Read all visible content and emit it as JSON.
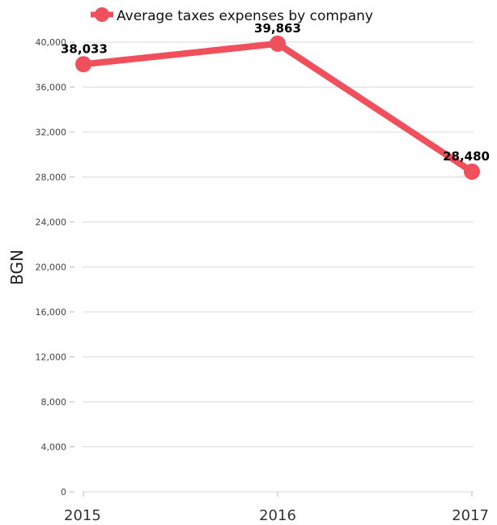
{
  "chart_data": {
    "type": "line",
    "categories": [
      "2015",
      "2016",
      "2017"
    ],
    "series": [
      {
        "name": "Average taxes expenses by company",
        "values": [
          38033,
          39863,
          28480
        ],
        "data_labels": [
          "38,033",
          "39,863",
          "28,480"
        ],
        "color": "#f0505c"
      }
    ],
    "ylabel": "BGN",
    "xlabel": "",
    "ylim": [
      0,
      40000
    ],
    "y_ticks": [
      0,
      4000,
      8000,
      12000,
      16000,
      20000,
      24000,
      28000,
      32000,
      36000,
      40000
    ],
    "y_tick_labels": [
      "0",
      "4,000",
      "8,000",
      "12,000",
      "16,000",
      "20,000",
      "24,000",
      "28,000",
      "32,000",
      "36,000",
      "40,000"
    ],
    "grid": true,
    "legend_position": "top-center"
  }
}
